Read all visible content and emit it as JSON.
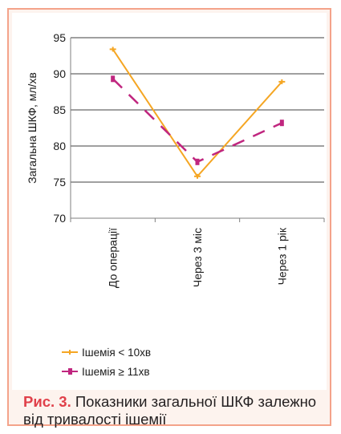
{
  "chart_data": {
    "type": "line",
    "categories": [
      "До операції",
      "Через 3 міс",
      "Через 1 рік"
    ],
    "ylabel": "Загальна ШКФ, мл/хв",
    "xlabel": "",
    "ylim": [
      70,
      95
    ],
    "yticks": [
      70,
      75,
      80,
      85,
      90,
      95
    ],
    "grid": true,
    "legend_position": "bottom-left",
    "series": [
      {
        "name": "Ішемія < 10хв",
        "values": [
          93.4,
          75.8,
          88.9
        ],
        "color": "#f5a623",
        "style": "solid"
      },
      {
        "name": "Ішемія ≥ 11хв",
        "values": [
          89.3,
          77.8,
          83.2
        ],
        "color": "#c0267f",
        "style": "dashed"
      }
    ]
  },
  "caption": {
    "label": "Рис. 3.",
    "text": "Показники загальної ШКФ залежно від тривалості ішемії"
  }
}
